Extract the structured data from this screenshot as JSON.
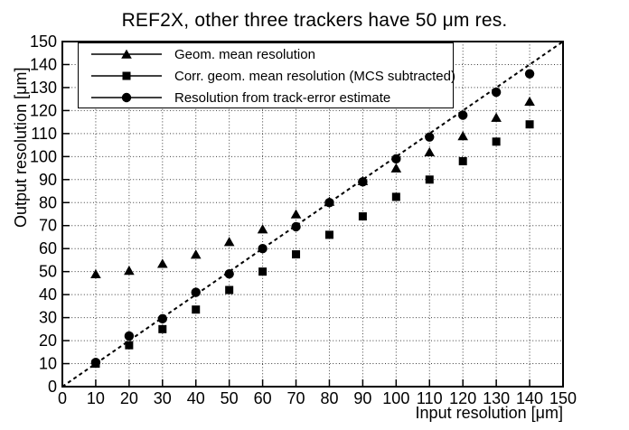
{
  "colors": {
    "foreground": "#000000",
    "background": "#ffffff",
    "grid": "#3c3c3c"
  },
  "chart_data": {
    "type": "scatter",
    "title": "REF2X, other three trackers have 50 μm res.",
    "xlabel": "Input resolution [μm]",
    "ylabel": "Output resolution [μm]",
    "xlim": [
      0,
      150
    ],
    "ylim": [
      0,
      150
    ],
    "x_ticks": [
      0,
      10,
      20,
      30,
      40,
      50,
      60,
      70,
      80,
      90,
      100,
      110,
      120,
      130,
      140,
      150
    ],
    "y_ticks": [
      0,
      10,
      20,
      30,
      40,
      50,
      60,
      70,
      80,
      90,
      100,
      110,
      120,
      130,
      140,
      150
    ],
    "grid": true,
    "grid_style": "dotted",
    "legend_position": "top-left",
    "reference_line": {
      "style": "dashed",
      "from": [
        0,
        0
      ],
      "to": [
        150,
        150
      ]
    },
    "x": [
      10,
      20,
      30,
      40,
      50,
      60,
      70,
      80,
      90,
      100,
      110,
      120,
      130,
      140
    ],
    "series": [
      {
        "name": "Geom. mean resolution",
        "marker": "triangle",
        "color": "#000000",
        "values": [
          49,
          50.5,
          53.5,
          57.5,
          63,
          68.5,
          75,
          80.5,
          89.5,
          95,
          102,
          109,
          117,
          124
        ]
      },
      {
        "name": "Corr. geom. mean resolution (MCS subtracted)",
        "marker": "square",
        "color": "#000000",
        "values": [
          10,
          18,
          25,
          33.5,
          42,
          50,
          57.5,
          66,
          74,
          82.5,
          90,
          98,
          106.5,
          114
        ]
      },
      {
        "name": "Resolution from track-error estimate",
        "marker": "circle",
        "color": "#000000",
        "values": [
          10.5,
          22,
          29.5,
          41,
          49,
          60,
          69.5,
          80,
          89,
          99,
          108.5,
          118,
          128,
          136
        ]
      }
    ]
  }
}
